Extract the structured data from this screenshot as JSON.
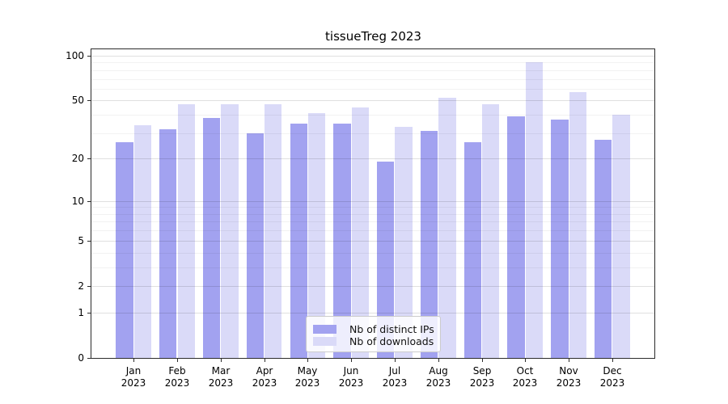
{
  "chart_data": {
    "type": "bar",
    "title": "tissueTreg 2023",
    "categories": [
      "Jan 2023",
      "Feb 2023",
      "Mar 2023",
      "Apr 2023",
      "May 2023",
      "Jun 2023",
      "Jul 2023",
      "Aug 2023",
      "Sep 2023",
      "Oct 2023",
      "Nov 2023",
      "Dec 2023"
    ],
    "series": [
      {
        "name": "Nb of distinct IPs",
        "color": "#a2a2f0",
        "values": [
          26,
          32,
          38,
          30,
          35,
          35,
          19,
          31,
          26,
          39,
          37,
          27
        ]
      },
      {
        "name": "Nb of downloads",
        "color": "#dadaf8",
        "values": [
          34,
          47,
          47,
          47,
          41,
          45,
          33,
          52,
          47,
          91,
          57,
          40
        ]
      }
    ],
    "xlabel": "",
    "ylabel": "",
    "yscale": "log1p",
    "yticks": [
      0,
      1,
      2,
      5,
      10,
      20,
      50,
      100
    ],
    "minor_yticks": [
      3,
      4,
      6,
      7,
      8,
      9,
      30,
      40,
      60,
      70,
      80,
      90
    ],
    "ylim": [
      0,
      111
    ],
    "grid": true,
    "legend_position": "lower center"
  },
  "colors": {
    "background": "#ffffff",
    "spine": "#2b2b2b",
    "major_grid": "rgba(0,0,0,0.12)",
    "minor_grid": "rgba(0,0,0,0.05)",
    "tick_text": "#000000",
    "legend_bg": "rgba(255,255,255,0.82)",
    "legend_border": "#cccccc",
    "legend_text": "#111111"
  }
}
